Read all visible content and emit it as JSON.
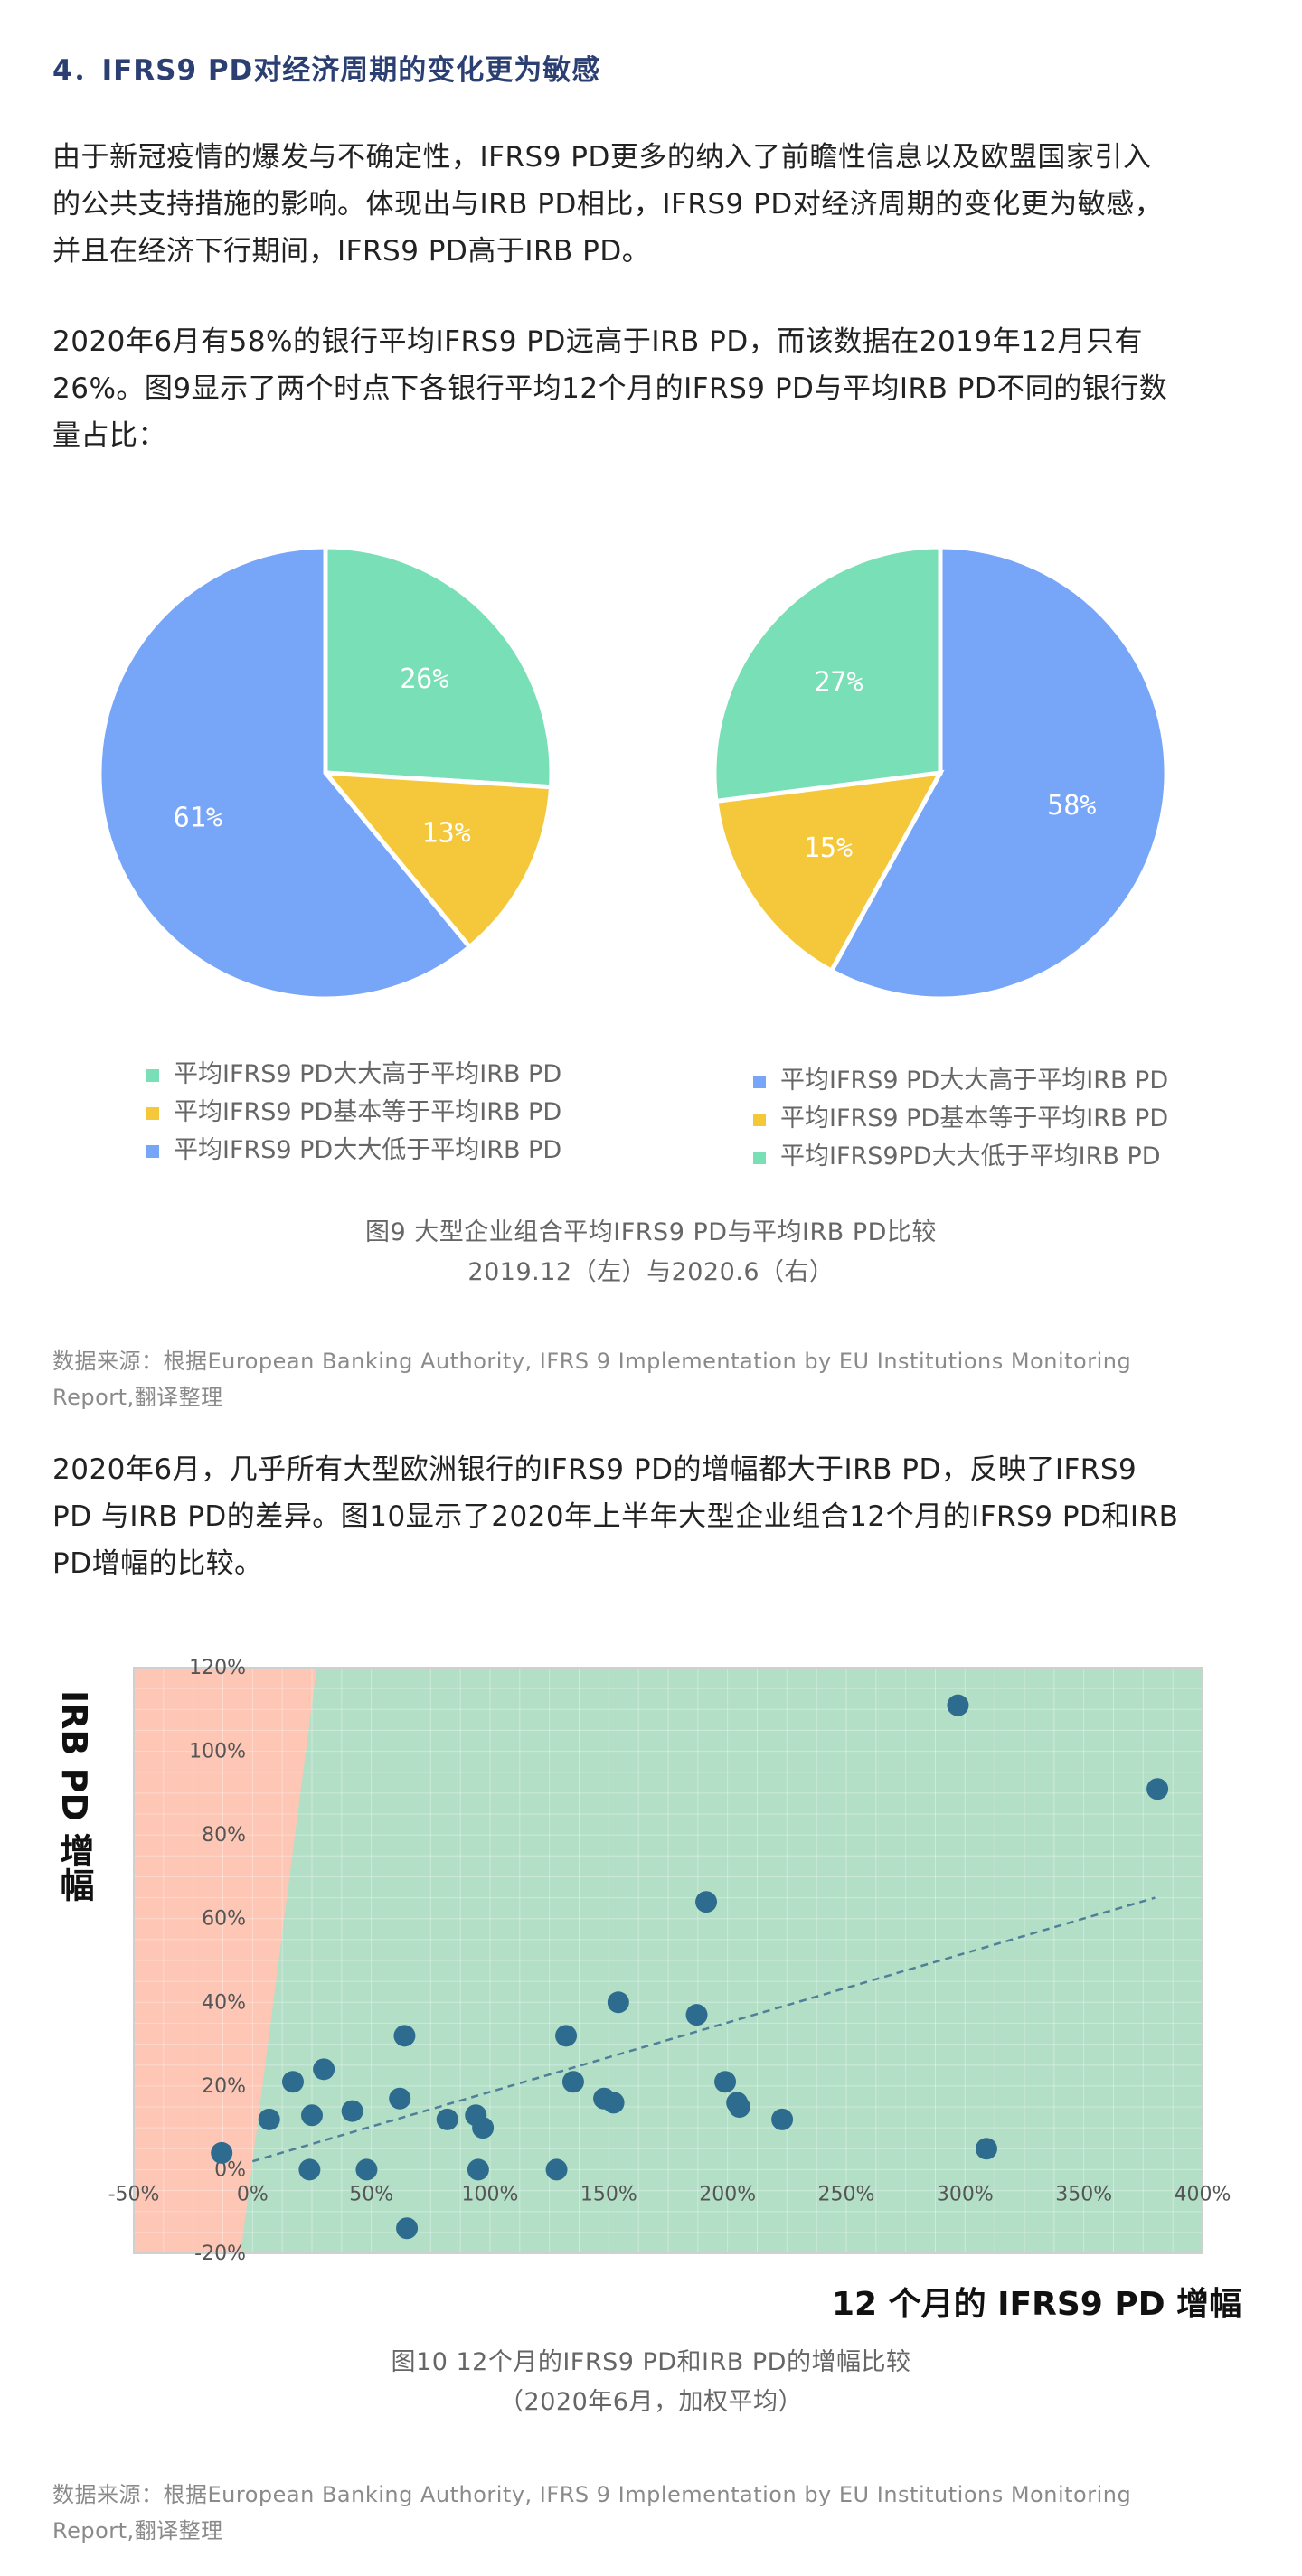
{
  "heading": "4．IFRS9 PD对经济周期的变化更为敏感",
  "para1": [
    "由于新冠疫情的爆发与不确定性，IFRS9 PD更多的纳入了前瞻性信息以及欧盟国家引入",
    "的公共支持措施的影响。体现出与IRB PD相比，IFRS9 PD对经济周期的变化更为敏感，",
    "并且在经济下行期间，IFRS9 PD高于IRB PD。"
  ],
  "para2": [
    "2020年6月有58%的银行平均IFRS9 PD远高于IRB PD，而该数据在2019年12月只有",
    "26%。图9显示了两个时点下各银行平均12个月的IFRS9 PD与平均IRB PD不同的银行数",
    "量占比："
  ],
  "para3": [
    "2020年6月，几乎所有大型欧洲银行的IFRS9 PD的增幅都大于IRB PD，反映了IFRS9",
    "PD 与IRB PD的差异。图10显示了2020年上半年大型企业组合12个月的IFRS9 PD和IRB",
    "PD增幅的比较。"
  ],
  "colors": {
    "green": "#78dfb6",
    "yellow": "#f5c73b",
    "blue": "#77a5f8",
    "heading": "#2b3f73",
    "scatter_red": "#fdc6b5",
    "scatter_green": "#b3dfc7",
    "dot": "#2d6c8e"
  },
  "chart_data": [
    {
      "type": "pie",
      "title": "",
      "slices": [
        {
          "label": "26%",
          "value": 26,
          "color": "#78dfb6"
        },
        {
          "label": "13%",
          "value": 13,
          "color": "#f5c73b"
        },
        {
          "label": "61%",
          "value": 61,
          "color": "#77a5f8"
        }
      ],
      "legend": [
        {
          "text": "平均IFRS9 PD大大高于平均IRB PD",
          "color": "#78dfb6"
        },
        {
          "text": "平均IFRS9 PD基本等于平均IRB PD",
          "color": "#f5c73b"
        },
        {
          "text": "平均IFRS9 PD大大低于平均IRB PD",
          "color": "#77a5f8"
        }
      ]
    },
    {
      "type": "pie",
      "title": "",
      "slices": [
        {
          "label": "58%",
          "value": 58,
          "color": "#77a5f8"
        },
        {
          "label": "15%",
          "value": 15,
          "color": "#f5c73b"
        },
        {
          "label": "27%",
          "value": 27,
          "color": "#78dfb6"
        }
      ],
      "legend": [
        {
          "text": "平均IFRS9 PD大大高于平均IRB PD",
          "color": "#77a5f8"
        },
        {
          "text": "平均IFRS9 PD基本等于平均IRB PD",
          "color": "#f5c73b"
        },
        {
          "text": "平均IFRS9PD大大低于平均IRB PD",
          "color": "#78dfb6"
        }
      ]
    },
    {
      "type": "scatter",
      "xlabel": "12 个月的 IFRS9 PD 增幅",
      "ylabel": "IRB PD 增幅",
      "xlim": [
        -50,
        400
      ],
      "ylim": [
        -20,
        120
      ],
      "x_ticks": [
        "-50%",
        "0%",
        "50%",
        "100%",
        "150%",
        "200%",
        "250%",
        "300%",
        "350%",
        "400%"
      ],
      "y_ticks": [
        "120%",
        "100%",
        "80%",
        "60%",
        "40%",
        "20%",
        "0%",
        "-20%"
      ],
      "trendline": {
        "x": [
          0,
          380
        ],
        "y": [
          2,
          65
        ]
      },
      "points": [
        {
          "x": -13,
          "y": 4
        },
        {
          "x": 7,
          "y": 12
        },
        {
          "x": 17,
          "y": 21
        },
        {
          "x": 24,
          "y": 0
        },
        {
          "x": 25,
          "y": 13
        },
        {
          "x": 30,
          "y": 24
        },
        {
          "x": 42,
          "y": 14
        },
        {
          "x": 48,
          "y": 0
        },
        {
          "x": 62,
          "y": 17
        },
        {
          "x": 64,
          "y": 32
        },
        {
          "x": 65,
          "y": -14
        },
        {
          "x": 82,
          "y": 12
        },
        {
          "x": 94,
          "y": 13
        },
        {
          "x": 95,
          "y": 0
        },
        {
          "x": 97,
          "y": 10
        },
        {
          "x": 128,
          "y": 0
        },
        {
          "x": 132,
          "y": 32
        },
        {
          "x": 135,
          "y": 21
        },
        {
          "x": 148,
          "y": 17
        },
        {
          "x": 152,
          "y": 16
        },
        {
          "x": 154,
          "y": 40
        },
        {
          "x": 187,
          "y": 37
        },
        {
          "x": 191,
          "y": 64
        },
        {
          "x": 199,
          "y": 21
        },
        {
          "x": 204,
          "y": 16
        },
        {
          "x": 205,
          "y": 15
        },
        {
          "x": 223,
          "y": 12
        },
        {
          "x": 297,
          "y": 111
        },
        {
          "x": 309,
          "y": 5
        },
        {
          "x": 381,
          "y": 91
        }
      ]
    }
  ],
  "fig9_caption": [
    "图9 大型企业组合平均IFRS9 PD与平均IRB PD比较",
    "2019.12（左）与2020.6（右）"
  ],
  "fig10_caption": [
    "图10  12个月的IFRS9 PD和IRB PD的增幅比较",
    "（2020年6月，加权平均）"
  ],
  "source1": [
    "数据来源：根据European Banking Authority, IFRS 9 Implementation by EU Institutions Monitoring",
    "Report,翻译整理"
  ],
  "source2": [
    "数据来源：根据European Banking Authority, IFRS 9 Implementation by EU Institutions Monitoring",
    "Report,翻译整理"
  ]
}
